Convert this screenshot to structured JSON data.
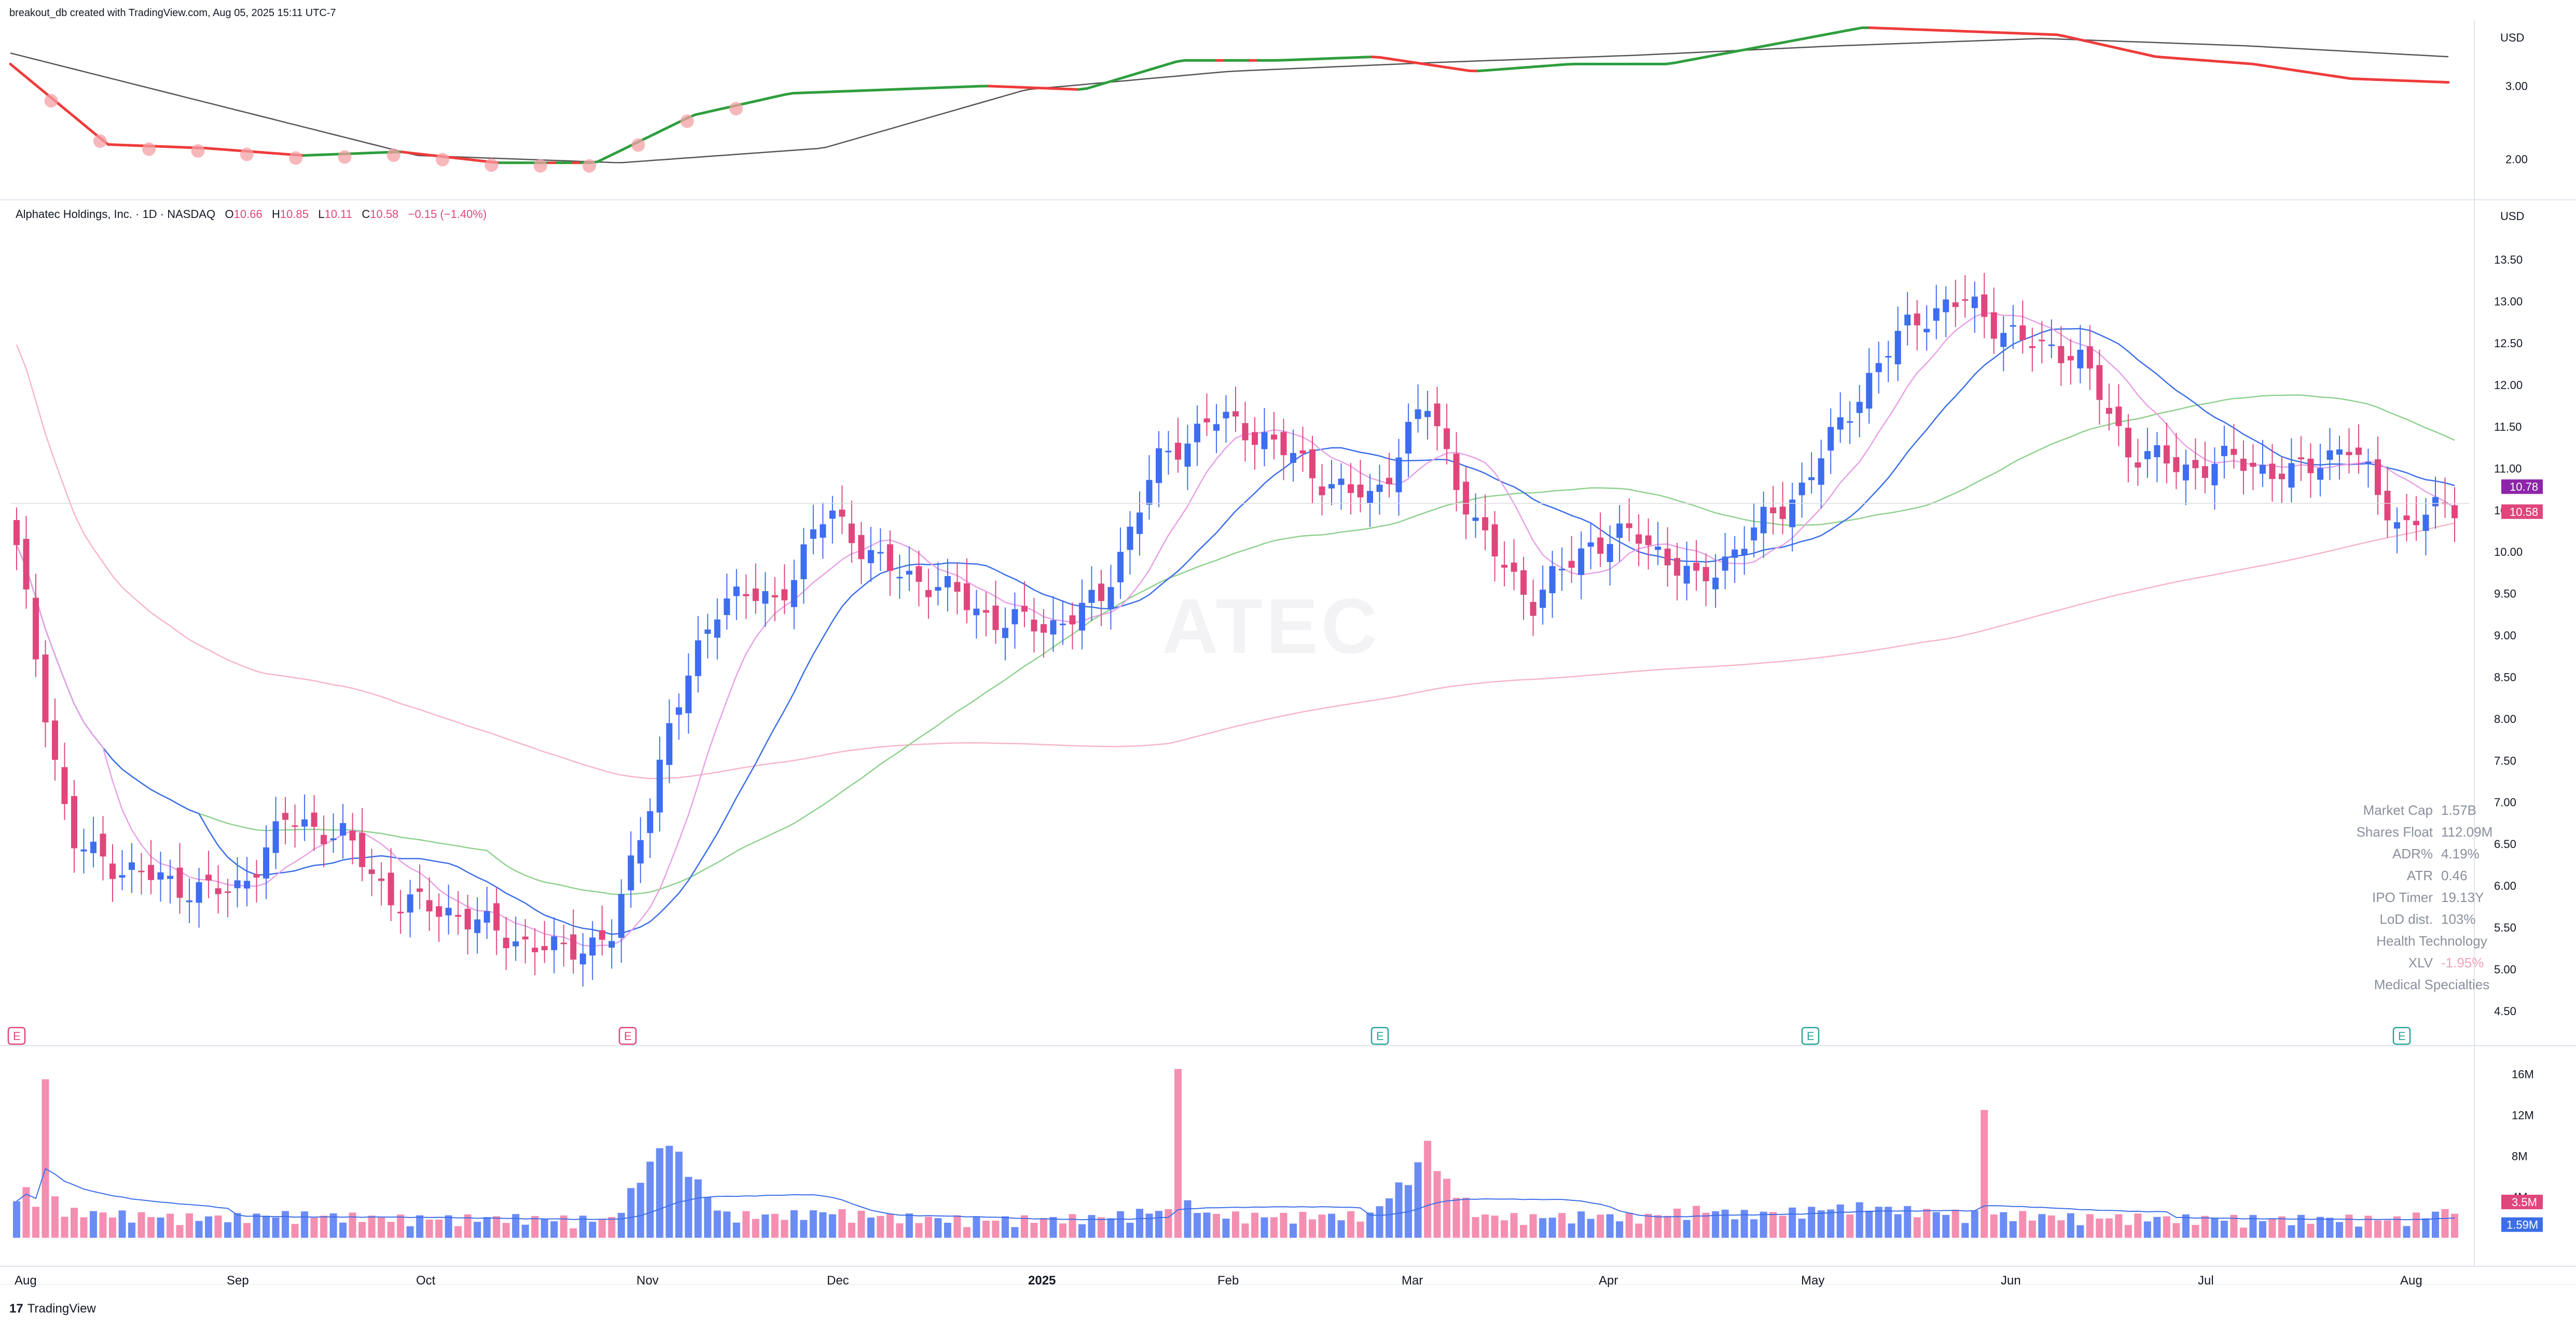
{
  "header": {
    "attribution": "breakout_db created with TradingView.com, Aug 05, 2025 15:11 UTC-7"
  },
  "legend": {
    "symbol_line": "Alphatec Holdings, Inc. · 1D · NASDAQ",
    "open_label": "O",
    "open_value": "10.66",
    "high_label": "H",
    "high_value": "10.85",
    "low_label": "L",
    "low_value": "10.11",
    "close_label": "C",
    "close_value": "10.58",
    "change_value": "−0.15 (−1.40%)"
  },
  "watermark": "ATEC",
  "footer": {
    "brand": "TradingView",
    "logo_mark": "17"
  },
  "stats_table": {
    "rows": [
      {
        "key": "Market Cap",
        "value": "1.57B"
      },
      {
        "key": "Shares Float",
        "value": "112.09M"
      },
      {
        "key": "ADR%",
        "value": "4.19%"
      },
      {
        "key": "ATR",
        "value": "0.46"
      },
      {
        "key": "IPO Timer",
        "value": "19.13Y"
      },
      {
        "key": "LoD dist.",
        "value": "103%"
      }
    ],
    "sector": "Health Technology",
    "etf_key": "XLV",
    "etf_value": "-1.95%",
    "industry": "Medical Specialties"
  },
  "colors": {
    "up": "#3d6df0",
    "down": "#e0467c",
    "vol_up": "#6b8cf5",
    "vol_down": "#f48fb1",
    "rs_up": "#2e9e3e",
    "rs_down": "#ef3b3b",
    "ma10": "#e7a2e6",
    "ma20": "#3b6ee8",
    "ma50": "#8fd18f",
    "ma200": "#f7b6c6"
  },
  "chart_data": [
    {
      "type": "line",
      "name": "relative-strength-pane",
      "currency": "USD",
      "y_ticks": [
        "3.00",
        "2.00"
      ],
      "ylim": [
        1.55,
        3.75
      ],
      "series": [
        {
          "name": "",
          "x": [
            "Aug 1",
            "Aug 15",
            "Sep 1",
            "Sep 15",
            "Oct 1",
            "Oct 15",
            "Oct 30",
            "Nov 5",
            "Nov 20",
            "Dec 5",
            "Dec 20",
            "Jan 6",
            "Jan 20",
            "Feb 5",
            "Feb 20",
            "Mar 5",
            "Mar 20",
            "Apr 5",
            "Apr 20",
            "May 5",
            "May 20",
            "Jun 5",
            "Jun 20",
            "Jul 5",
            "Jul 20",
            "Aug 5"
          ],
          "values": [
            3.3,
            2.2,
            2.15,
            2.05,
            2.1,
            1.95,
            1.95,
            2.6,
            2.9,
            2.95,
            3.0,
            2.95,
            3.35,
            3.35,
            3.4,
            3.2,
            3.3,
            3.3,
            3.55,
            3.8,
            3.75,
            3.7,
            3.4,
            3.3,
            3.1,
            3.05
          ]
        },
        {
          "name": "",
          "x": [
            "Aug 1",
            "Sep 15",
            "Oct 15",
            "Nov 1",
            "Dec 1",
            "Jan 1",
            "Feb 1",
            "Mar 1",
            "Apr 1",
            "May 1",
            "Jun 1",
            "Jul 1",
            "Aug 5"
          ],
          "values": [
            3.45,
            2.75,
            2.05,
            1.95,
            2.15,
            2.95,
            3.2,
            3.32,
            3.42,
            3.55,
            3.65,
            3.55,
            3.4
          ]
        }
      ]
    },
    {
      "type": "candlestick",
      "name": "price-pane",
      "currency": "USD",
      "y_ticks": [
        "13.50",
        "13.00",
        "12.50",
        "12.00",
        "11.50",
        "11.00",
        "10.50",
        "10.00",
        "9.50",
        "9.00",
        "8.50",
        "8.00",
        "7.50",
        "7.00",
        "6.50",
        "6.00",
        "5.50",
        "5.00",
        "4.50"
      ],
      "ylim": [
        4.3,
        13.75
      ],
      "x_ticks": [
        "Aug",
        "Sep",
        "Oct",
        "Nov",
        "Dec",
        "2025",
        "Feb",
        "Mar",
        "Apr",
        "May",
        "Jun",
        "Jul",
        "Aug"
      ],
      "last_close": 10.58,
      "ma_label": 10.78,
      "closes_weekly": [
        10.0,
        6.5,
        6.2,
        6.0,
        5.9,
        6.8,
        6.6,
        5.8,
        5.7,
        5.4,
        5.2,
        5.4,
        7.8,
        9.5,
        9.4,
        10.5,
        9.8,
        9.6,
        9.2,
        9.1,
        9.4,
        11.0,
        11.6,
        11.4,
        10.9,
        10.6,
        11.8,
        10.2,
        9.4,
        10.1,
        10.2,
        9.6,
        10.2,
        10.8,
        11.9,
        12.8,
        13.0,
        12.5,
        12.4,
        11.2,
        11.0,
        11.1,
        10.9,
        11.3,
        10.3,
        10.58
      ],
      "earnings_markers": [
        {
          "x": "Aug 1",
          "label": "E",
          "kind": "down"
        },
        {
          "x": "Nov 1",
          "label": "E",
          "kind": "down"
        },
        {
          "x": "Mar 1",
          "label": "E",
          "kind": "up"
        },
        {
          "x": "May 1",
          "label": "E",
          "kind": "up"
        },
        {
          "x": "Aug 3",
          "label": "E",
          "kind": "up"
        }
      ]
    },
    {
      "type": "bar",
      "name": "volume-pane",
      "y_ticks": [
        "16M",
        "12M",
        "8M",
        "4M"
      ],
      "ylim": [
        0,
        17
      ],
      "last_volume": "3.5M",
      "avg_volume": "1.59M",
      "weekly_volume_m": [
        5,
        3,
        2.5,
        2,
        2,
        2.5,
        2.2,
        1.8,
        1.8,
        1.9,
        1.7,
        1.6,
        16,
        2.5,
        2.3,
        3,
        2.2,
        1.7,
        1.6,
        1.7,
        2,
        3.2,
        2.5,
        2.2,
        2.3,
        2.4,
        12.5,
        2.2,
        2,
        2.4,
        2,
        3.4,
        2.5,
        3.2,
        4,
        3.2,
        2.6,
        2.4,
        2,
        2,
        1.8,
        1.8,
        1.7,
        1.8,
        1.6,
        3.5
      ]
    }
  ]
}
